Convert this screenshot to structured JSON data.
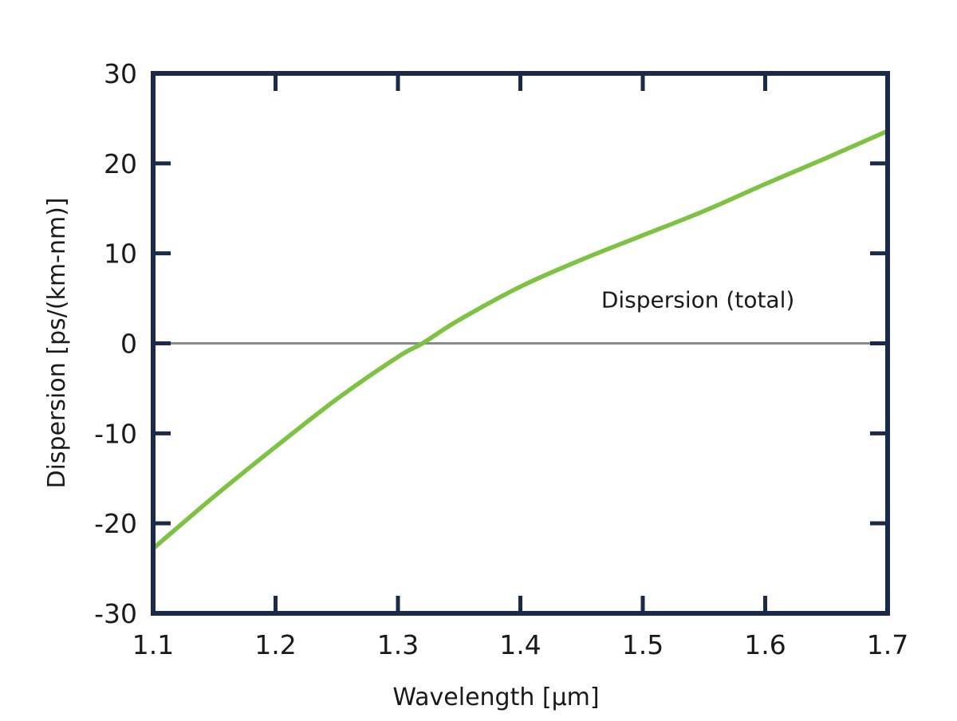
{
  "chart_data": {
    "type": "line",
    "title": "",
    "xlabel": "Wavelength [µm]",
    "ylabel": "Dispersion [ps/(km-nm)]",
    "xlim": [
      1.1,
      1.7
    ],
    "ylim": [
      -30,
      30
    ],
    "x_ticks": [
      1.1,
      1.2,
      1.3,
      1.4,
      1.5,
      1.6,
      1.7
    ],
    "x_tick_labels": [
      "1.1",
      "1.2",
      "1.3",
      "1.4",
      "1.5",
      "1.6",
      "1.7"
    ],
    "y_ticks": [
      -30,
      -20,
      -10,
      0,
      10,
      20,
      30
    ],
    "y_tick_labels": [
      "-30",
      "-20",
      "-10",
      "0",
      "10",
      "20",
      "30"
    ],
    "grid": false,
    "legend": "none",
    "annotations": [
      {
        "text": "Dispersion (total)",
        "x": 1.545,
        "y": 4
      }
    ],
    "reference_line": {
      "y": 0,
      "color": "#8a8a8a"
    },
    "series": [
      {
        "color": "#7dc242",
        "x": [
          1.1,
          1.15,
          1.2,
          1.25,
          1.3,
          1.32,
          1.35,
          1.4,
          1.45,
          1.5,
          1.55,
          1.6,
          1.65,
          1.7
        ],
        "y": [
          -22.8,
          -17.0,
          -11.5,
          -6.2,
          -1.5,
          0.0,
          2.6,
          6.3,
          9.3,
          12.0,
          14.7,
          17.7,
          20.6,
          23.6
        ]
      }
    ],
    "frame_color": "#1b2a4a"
  }
}
